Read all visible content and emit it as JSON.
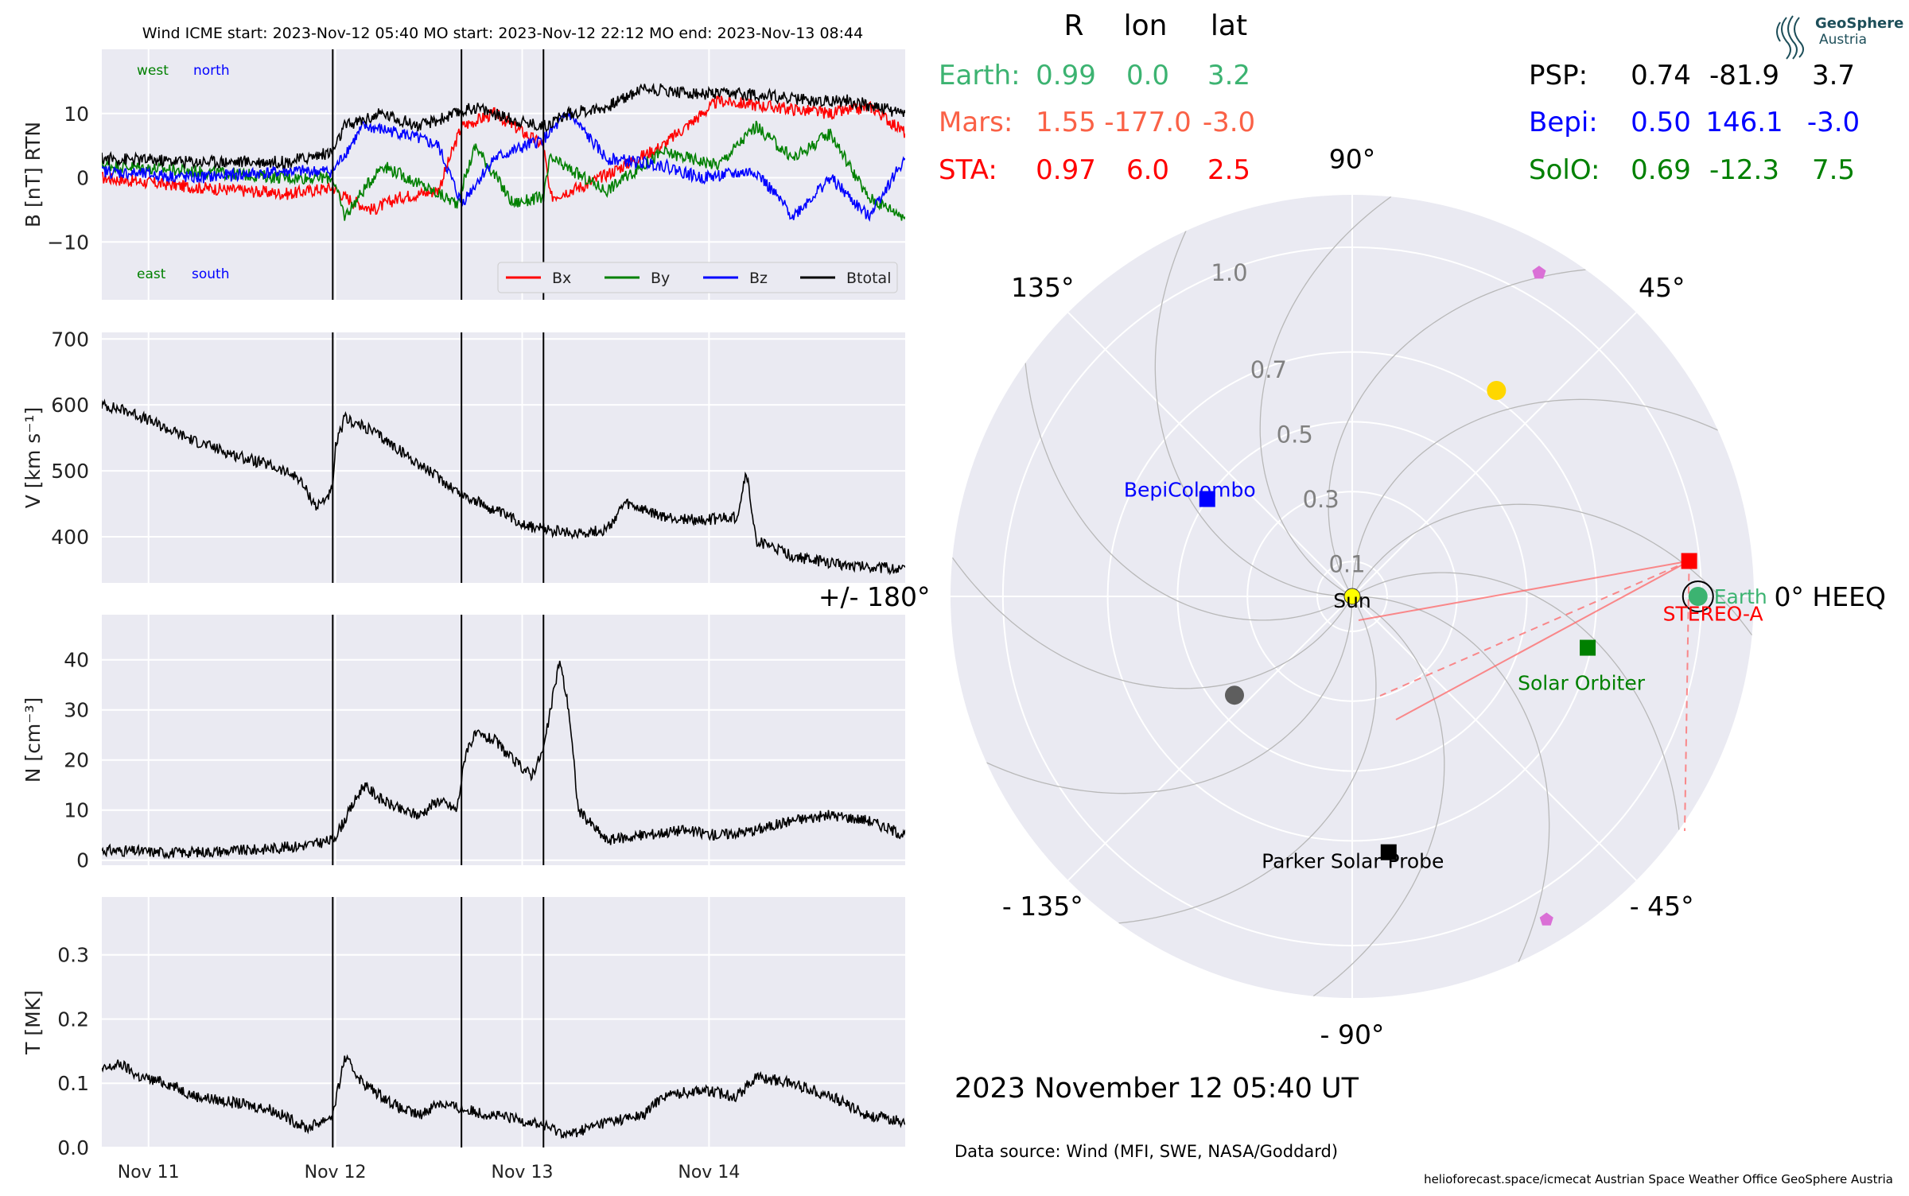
{
  "header": {
    "title": "Wind    ICME start: 2023-Nov-12 05:40   MO start: 2023-Nov-12 22:12   MO end: 2023-Nov-13 08:44"
  },
  "logo": {
    "line1": "GeoSphere",
    "line2": "Austria"
  },
  "table": {
    "headers": [
      "R",
      "lon",
      "lat"
    ],
    "rows_left": [
      {
        "name": "Earth:",
        "r": "0.99",
        "lon": "0.0",
        "lat": "3.2",
        "color": "#3cb371"
      },
      {
        "name": "Mars:",
        "r": "1.55",
        "lon": "-177.0",
        "lat": "-3.0",
        "color": "#fa6146"
      },
      {
        "name": "STA:",
        "r": "0.97",
        "lon": "6.0",
        "lat": "2.5",
        "color": "#ff0000"
      }
    ],
    "rows_right": [
      {
        "name": "PSP:",
        "r": "0.74",
        "lon": "-81.9",
        "lat": "3.7",
        "color": "#000000"
      },
      {
        "name": "Bepi:",
        "r": "0.50",
        "lon": "146.1",
        "lat": "-3.0",
        "color": "#0000ff"
      },
      {
        "name": "SolO:",
        "r": "0.69",
        "lon": "-12.3",
        "lat": "7.5",
        "color": "#008000"
      }
    ]
  },
  "footer": {
    "date": "2023 November 12  05:40 UT",
    "source": "Data source: Wind (MFI, SWE, NASA/Goddard)",
    "credits": "helioforecast.space/icmecat   Austrian Space Weather Office   GeoSphere Austria"
  },
  "chart_data": [
    {
      "type": "line",
      "name": "magnetic-field",
      "ylabel": "B [nT] RTN",
      "ylim": [
        -19,
        20
      ],
      "yticks": [
        "10",
        "0",
        "−10"
      ],
      "ytick_values": [
        10,
        0,
        -10
      ],
      "xlim": [
        0,
        4.3
      ],
      "xticks": [
        "Nov 11",
        "Nov 12",
        "Nov 13",
        "Nov 14"
      ],
      "xtick_values": [
        0.25,
        1.25,
        2.25,
        3.25
      ],
      "event_lines": [
        1.236,
        1.925,
        2.364
      ],
      "corner_labels": {
        "west": "west",
        "north": "north",
        "east": "east",
        "south": "south"
      },
      "legend": [
        "Bx",
        "By",
        "Bz",
        "Btotal"
      ],
      "legend_position": "lower-right",
      "grid": true,
      "series": [
        {
          "name": "Bx",
          "color": "#ff0000",
          "points": [
            [
              0,
              0
            ],
            [
              0.5,
              -1.5
            ],
            [
              1.0,
              -2.5
            ],
            [
              1.236,
              -1.5
            ],
            [
              1.3,
              -3
            ],
            [
              1.45,
              -5
            ],
            [
              1.6,
              -3
            ],
            [
              1.8,
              -2
            ],
            [
              1.925,
              8
            ],
            [
              2.1,
              10
            ],
            [
              2.364,
              5
            ],
            [
              2.4,
              -3
            ],
            [
              2.6,
              -1
            ],
            [
              2.8,
              2
            ],
            [
              3.0,
              5
            ],
            [
              3.3,
              12
            ],
            [
              3.6,
              11
            ],
            [
              3.9,
              10
            ],
            [
              4.12,
              11
            ],
            [
              4.3,
              7
            ]
          ]
        },
        {
          "name": "By",
          "color": "#008000",
          "points": [
            [
              0,
              2
            ],
            [
              0.5,
              1
            ],
            [
              1.0,
              0
            ],
            [
              1.236,
              0
            ],
            [
              1.3,
              -6
            ],
            [
              1.5,
              2
            ],
            [
              1.7,
              -1
            ],
            [
              1.9,
              -4
            ],
            [
              2.0,
              5
            ],
            [
              2.2,
              -4
            ],
            [
              2.364,
              -3
            ],
            [
              2.4,
              3
            ],
            [
              2.7,
              -2
            ],
            [
              3.0,
              4
            ],
            [
              3.3,
              2
            ],
            [
              3.5,
              8
            ],
            [
              3.7,
              3
            ],
            [
              3.9,
              7
            ],
            [
              4.1,
              -3
            ],
            [
              4.3,
              -6
            ]
          ]
        },
        {
          "name": "Bz",
          "color": "#0000ff",
          "points": [
            [
              0,
              1
            ],
            [
              0.5,
              0
            ],
            [
              1.0,
              1
            ],
            [
              1.236,
              1
            ],
            [
              1.4,
              8
            ],
            [
              1.6,
              7
            ],
            [
              1.8,
              5
            ],
            [
              1.925,
              -4
            ],
            [
              2.1,
              3
            ],
            [
              2.364,
              6
            ],
            [
              2.5,
              10
            ],
            [
              2.7,
              3
            ],
            [
              3.0,
              2
            ],
            [
              3.2,
              0
            ],
            [
              3.5,
              1
            ],
            [
              3.7,
              -6
            ],
            [
              3.9,
              0
            ],
            [
              4.1,
              -6
            ],
            [
              4.3,
              3
            ]
          ]
        },
        {
          "name": "Btotal",
          "color": "#000000",
          "points": [
            [
              0,
              3
            ],
            [
              0.5,
              2.5
            ],
            [
              1.0,
              2.5
            ],
            [
              1.236,
              4
            ],
            [
              1.3,
              8
            ],
            [
              1.5,
              10
            ],
            [
              1.7,
              8
            ],
            [
              1.9,
              10
            ],
            [
              2.0,
              11
            ],
            [
              2.2,
              9
            ],
            [
              2.364,
              8
            ],
            [
              2.5,
              10
            ],
            [
              2.7,
              11
            ],
            [
              2.9,
              14
            ],
            [
              3.2,
              13
            ],
            [
              3.5,
              13
            ],
            [
              3.8,
              12
            ],
            [
              4.0,
              12
            ],
            [
              4.3,
              10
            ]
          ]
        }
      ]
    },
    {
      "type": "line",
      "name": "speed",
      "ylabel": "V [km s⁻¹]",
      "ylim": [
        330,
        710
      ],
      "yticks": [
        "700",
        "600",
        "500",
        "400"
      ],
      "ytick_values": [
        700,
        600,
        500,
        400
      ],
      "xlim": [
        0,
        4.3
      ],
      "event_lines": [
        1.236,
        1.925,
        2.364
      ],
      "grid": true,
      "series": [
        {
          "name": "V",
          "color": "#000000",
          "points": [
            [
              0,
              600
            ],
            [
              0.15,
              590
            ],
            [
              0.3,
              570
            ],
            [
              0.5,
              545
            ],
            [
              0.7,
              525
            ],
            [
              0.9,
              508
            ],
            [
              1.05,
              490
            ],
            [
              1.15,
              445
            ],
            [
              1.236,
              470
            ],
            [
              1.25,
              535
            ],
            [
              1.3,
              580
            ],
            [
              1.45,
              560
            ],
            [
              1.6,
              530
            ],
            [
              1.8,
              490
            ],
            [
              1.925,
              465
            ],
            [
              2.1,
              440
            ],
            [
              2.3,
              415
            ],
            [
              2.5,
              405
            ],
            [
              2.7,
              410
            ],
            [
              2.8,
              450
            ],
            [
              3.0,
              430
            ],
            [
              3.2,
              425
            ],
            [
              3.4,
              430
            ],
            [
              3.45,
              500
            ],
            [
              3.5,
              395
            ],
            [
              3.7,
              370
            ],
            [
              3.9,
              360
            ],
            [
              4.1,
              355
            ],
            [
              4.3,
              350
            ]
          ]
        }
      ]
    },
    {
      "type": "line",
      "name": "density",
      "ylabel": "N [cm⁻³]",
      "ylim": [
        -1,
        49
      ],
      "yticks": [
        "40",
        "30",
        "20",
        "10",
        "0"
      ],
      "ytick_values": [
        40,
        30,
        20,
        10,
        0
      ],
      "xlim": [
        0,
        4.3
      ],
      "event_lines": [
        1.236,
        1.925,
        2.364
      ],
      "grid": true,
      "series": [
        {
          "name": "N",
          "color": "#000000",
          "points": [
            [
              0,
              2
            ],
            [
              0.4,
              1.5
            ],
            [
              0.8,
              2
            ],
            [
              1.1,
              3
            ],
            [
              1.236,
              4
            ],
            [
              1.3,
              8
            ],
            [
              1.4,
              15
            ],
            [
              1.5,
              12
            ],
            [
              1.6,
              10
            ],
            [
              1.7,
              9
            ],
            [
              1.8,
              12
            ],
            [
              1.9,
              10
            ],
            [
              1.95,
              22
            ],
            [
              2.0,
              25
            ],
            [
              2.1,
              24
            ],
            [
              2.2,
              20
            ],
            [
              2.3,
              17
            ],
            [
              2.364,
              22
            ],
            [
              2.45,
              40
            ],
            [
              2.5,
              30
            ],
            [
              2.55,
              10
            ],
            [
              2.7,
              4
            ],
            [
              2.9,
              5
            ],
            [
              3.1,
              6
            ],
            [
              3.3,
              5
            ],
            [
              3.5,
              6
            ],
            [
              3.7,
              8
            ],
            [
              3.9,
              9
            ],
            [
              4.1,
              8
            ],
            [
              4.3,
              5
            ]
          ]
        }
      ]
    },
    {
      "type": "line",
      "name": "temperature",
      "ylabel": "T [MK]",
      "ylim": [
        0,
        0.39
      ],
      "yticks": [
        "0.3",
        "0.2",
        "0.1",
        "0.0"
      ],
      "ytick_values": [
        0.3,
        0.2,
        0.1,
        0.0
      ],
      "xlim": [
        0,
        4.3
      ],
      "xticks": [
        "Nov 11",
        "Nov 12",
        "Nov 13",
        "Nov 14"
      ],
      "xtick_values": [
        0.25,
        1.25,
        2.25,
        3.25
      ],
      "event_lines": [
        1.236,
        1.925,
        2.364
      ],
      "grid": true,
      "series": [
        {
          "name": "T",
          "color": "#000000",
          "points": [
            [
              0,
              0.12
            ],
            [
              0.1,
              0.13
            ],
            [
              0.2,
              0.11
            ],
            [
              0.35,
              0.1
            ],
            [
              0.5,
              0.08
            ],
            [
              0.7,
              0.07
            ],
            [
              0.9,
              0.06
            ],
            [
              1.1,
              0.03
            ],
            [
              1.236,
              0.05
            ],
            [
              1.3,
              0.14
            ],
            [
              1.4,
              0.1
            ],
            [
              1.5,
              0.08
            ],
            [
              1.6,
              0.06
            ],
            [
              1.7,
              0.05
            ],
            [
              1.8,
              0.07
            ],
            [
              1.925,
              0.06
            ],
            [
              2.1,
              0.05
            ],
            [
              2.3,
              0.04
            ],
            [
              2.5,
              0.02
            ],
            [
              2.7,
              0.04
            ],
            [
              2.9,
              0.05
            ],
            [
              3.0,
              0.08
            ],
            [
              3.2,
              0.09
            ],
            [
              3.4,
              0.08
            ],
            [
              3.5,
              0.11
            ],
            [
              3.7,
              0.1
            ],
            [
              3.9,
              0.08
            ],
            [
              4.1,
              0.05
            ],
            [
              4.3,
              0.04
            ]
          ]
        }
      ]
    },
    {
      "type": "scatter",
      "name": "heliospheric-positions",
      "projection": "polar",
      "rlim": [
        0,
        1.15
      ],
      "radial_ticks": [
        {
          "label": "0.1",
          "value": 0.1
        },
        {
          "label": "0.3",
          "value": 0.3
        },
        {
          "label": "0.5",
          "value": 0.5
        },
        {
          "label": "0.7",
          "value": 0.7
        },
        {
          "label": "1.0",
          "value": 1.0
        }
      ],
      "angle_labels": [
        {
          "label": "0° HEEQ",
          "angle": 0
        },
        {
          "label": "45°",
          "angle": 45
        },
        {
          "label": "90°",
          "angle": 90
        },
        {
          "label": "135°",
          "angle": 135
        },
        {
          "label": "+/- 180°",
          "angle": 180
        },
        {
          "label": "- 135°",
          "angle": -135
        },
        {
          "label": "- 90°",
          "angle": -90
        },
        {
          "label": "- 45°",
          "angle": -45
        }
      ],
      "bodies": [
        {
          "name": "Sun",
          "r": 0,
          "lon": 0,
          "marker": "circle",
          "color": "#ffff00",
          "label": "Sun",
          "label_color": "#000000"
        },
        {
          "name": "Earth",
          "r": 0.99,
          "lon": 0.0,
          "marker": "circle",
          "color": "#3cb371",
          "label": "Earth",
          "label_color": "#3cb371"
        },
        {
          "name": "STEREO-A",
          "r": 0.97,
          "lon": 6.0,
          "marker": "square",
          "color": "#ff0000",
          "label": "STEREO-A",
          "label_color": "#ff0000"
        },
        {
          "name": "Solar Orbiter",
          "r": 0.69,
          "lon": -12.3,
          "marker": "square",
          "color": "#008000",
          "label": "Solar Orbiter",
          "label_color": "#008000"
        },
        {
          "name": "BepiColombo",
          "r": 0.5,
          "lon": 146.1,
          "marker": "square",
          "color": "#0000ff",
          "label": "BepiColombo",
          "label_color": "#0000ff"
        },
        {
          "name": "Parker Solar Probe",
          "r": 0.74,
          "lon": -81.9,
          "marker": "square",
          "color": "#000000",
          "label": "Parker Solar Probe",
          "label_color": "#000000"
        },
        {
          "name": "Venus",
          "r": 0.72,
          "lon": 55,
          "marker": "circle",
          "color": "#ffd700",
          "label": "",
          "label_color": "#000000"
        },
        {
          "name": "Mercury",
          "r": 0.44,
          "lon": -140,
          "marker": "circle",
          "color": "#5e5e5e",
          "label": "",
          "label_color": "#000000"
        },
        {
          "name": "object-1",
          "r": 1.07,
          "lon": 60,
          "marker": "pentagon",
          "color": "#da70d6",
          "label": "",
          "label_color": "#000000"
        },
        {
          "name": "object-2",
          "r": 1.08,
          "lon": -59,
          "marker": "pentagon",
          "color": "#da70d6",
          "label": "",
          "label_color": "#000000"
        }
      ],
      "spiral_lines_count": 12,
      "sta_fov_color": "#ff6666"
    }
  ]
}
